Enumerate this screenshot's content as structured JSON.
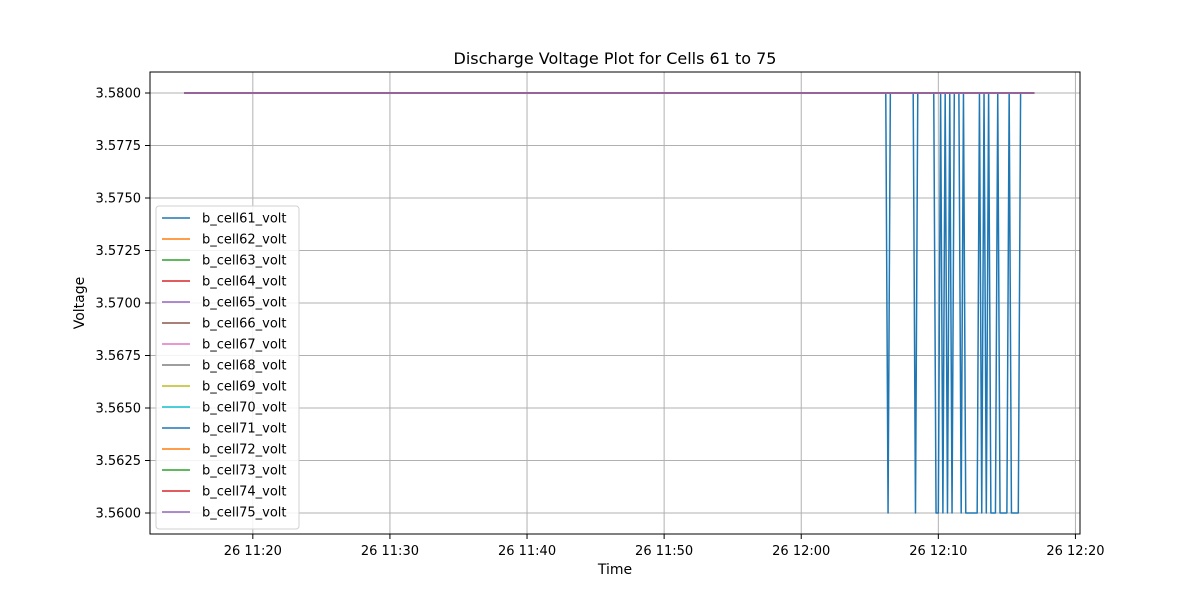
{
  "chart_data": {
    "type": "line",
    "title": "Discharge Voltage Plot for Cells 61 to 75",
    "xlabel": "Time",
    "ylabel": "Voltage",
    "x_range": [
      "26 11:15",
      "26 12:17"
    ],
    "xlim": [
      "26 11:12:30",
      "26 12:20:20"
    ],
    "ylim": [
      3.559,
      3.581
    ],
    "x_ticks": [
      "26 11:20",
      "26 11:30",
      "26 11:40",
      "26 11:50",
      "26 12:00",
      "26 12:10",
      "26 12:20"
    ],
    "y_ticks": [
      "3.5600",
      "3.5625",
      "3.5650",
      "3.5675",
      "3.5700",
      "3.5725",
      "3.5750",
      "3.5775",
      "3.5800"
    ],
    "grid": true,
    "legend_position": "lower-left",
    "series": [
      {
        "name": "b_cell61_volt",
        "color": "#1f77b4",
        "points": [
          [
            "26 11:15:00",
            3.58
          ],
          [
            "26 12:06:10",
            3.58
          ],
          [
            "26 12:06:20",
            3.56
          ],
          [
            "26 12:06:30",
            3.58
          ],
          [
            "26 12:08:10",
            3.58
          ],
          [
            "26 12:08:20",
            3.56
          ],
          [
            "26 12:08:30",
            3.58
          ],
          [
            "26 12:09:40",
            3.58
          ],
          [
            "26 12:09:50",
            3.56
          ],
          [
            "26 12:10:00",
            3.56
          ],
          [
            "26 12:10:10",
            3.58
          ],
          [
            "26 12:10:20",
            3.56
          ],
          [
            "26 12:10:30",
            3.58
          ],
          [
            "26 12:10:40",
            3.56
          ],
          [
            "26 12:10:50",
            3.58
          ],
          [
            "26 12:11:00",
            3.56
          ],
          [
            "26 12:11:10",
            3.58
          ],
          [
            "26 12:11:30",
            3.58
          ],
          [
            "26 12:11:40",
            3.56
          ],
          [
            "26 12:11:50",
            3.58
          ],
          [
            "26 12:12:00",
            3.56
          ],
          [
            "26 12:12:50",
            3.56
          ],
          [
            "26 12:13:00",
            3.58
          ],
          [
            "26 12:13:10",
            3.56
          ],
          [
            "26 12:13:20",
            3.58
          ],
          [
            "26 12:13:30",
            3.56
          ],
          [
            "26 12:13:40",
            3.58
          ],
          [
            "26 12:13:50",
            3.56
          ],
          [
            "26 12:14:10",
            3.56
          ],
          [
            "26 12:14:20",
            3.58
          ],
          [
            "26 12:14:30",
            3.56
          ],
          [
            "26 12:15:00",
            3.56
          ],
          [
            "26 12:15:10",
            3.58
          ],
          [
            "26 12:15:20",
            3.56
          ],
          [
            "26 12:15:50",
            3.56
          ],
          [
            "26 12:16:00",
            3.58
          ],
          [
            "26 12:17:00",
            3.58
          ]
        ]
      },
      {
        "name": "b_cell62_volt",
        "color": "#ff7f0e",
        "points": [
          [
            "26 11:15:00",
            3.58
          ],
          [
            "26 12:17:00",
            3.58
          ]
        ]
      },
      {
        "name": "b_cell63_volt",
        "color": "#2ca02c",
        "points": [
          [
            "26 11:15:00",
            3.58
          ],
          [
            "26 12:17:00",
            3.58
          ]
        ]
      },
      {
        "name": "b_cell64_volt",
        "color": "#d62728",
        "points": [
          [
            "26 11:15:00",
            3.58
          ],
          [
            "26 12:17:00",
            3.58
          ]
        ]
      },
      {
        "name": "b_cell65_volt",
        "color": "#9467bd",
        "points": [
          [
            "26 11:15:00",
            3.58
          ],
          [
            "26 12:17:00",
            3.58
          ]
        ]
      },
      {
        "name": "b_cell66_volt",
        "color": "#8c564b",
        "points": [
          [
            "26 11:15:00",
            3.58
          ],
          [
            "26 12:17:00",
            3.58
          ]
        ]
      },
      {
        "name": "b_cell67_volt",
        "color": "#e377c2",
        "points": [
          [
            "26 11:15:00",
            3.58
          ],
          [
            "26 12:17:00",
            3.58
          ]
        ]
      },
      {
        "name": "b_cell68_volt",
        "color": "#7f7f7f",
        "points": [
          [
            "26 11:15:00",
            3.58
          ],
          [
            "26 12:17:00",
            3.58
          ]
        ]
      },
      {
        "name": "b_cell69_volt",
        "color": "#bcbd22",
        "points": [
          [
            "26 11:15:00",
            3.58
          ],
          [
            "26 12:17:00",
            3.58
          ]
        ]
      },
      {
        "name": "b_cell70_volt",
        "color": "#17becf",
        "points": [
          [
            "26 11:15:00",
            3.58
          ],
          [
            "26 12:17:00",
            3.58
          ]
        ]
      },
      {
        "name": "b_cell71_volt",
        "color": "#1f77b4",
        "points": [
          [
            "26 11:15:00",
            3.58
          ],
          [
            "26 12:17:00",
            3.58
          ]
        ]
      },
      {
        "name": "b_cell72_volt",
        "color": "#ff7f0e",
        "points": [
          [
            "26 11:15:00",
            3.58
          ],
          [
            "26 12:17:00",
            3.58
          ]
        ]
      },
      {
        "name": "b_cell73_volt",
        "color": "#2ca02c",
        "points": [
          [
            "26 11:15:00",
            3.58
          ],
          [
            "26 12:17:00",
            3.58
          ]
        ]
      },
      {
        "name": "b_cell74_volt",
        "color": "#d62728",
        "points": [
          [
            "26 11:15:00",
            3.58
          ],
          [
            "26 12:17:00",
            3.58
          ]
        ]
      },
      {
        "name": "b_cell75_volt",
        "color": "#9467bd",
        "points": [
          [
            "26 11:15:00",
            3.58
          ],
          [
            "26 12:17:00",
            3.58
          ]
        ]
      }
    ]
  }
}
